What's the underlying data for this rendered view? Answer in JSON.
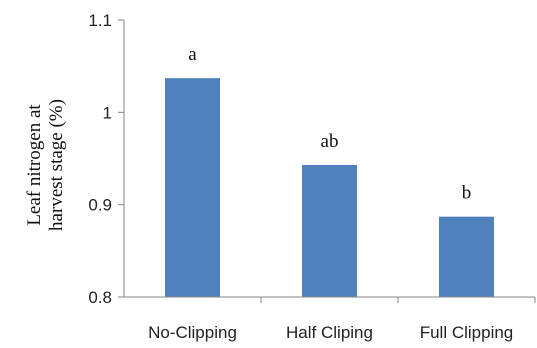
{
  "chart_data": {
    "type": "bar",
    "categories": [
      "No-Clipping",
      "Half Cliping",
      "Full Clipping"
    ],
    "values": [
      1.037,
      0.943,
      0.887
    ],
    "data_labels": [
      "a",
      "ab",
      "b"
    ],
    "title": "",
    "xlabel": "",
    "ylabel_lines": [
      "Leaf nitrogen at",
      "harvest stage (%)"
    ],
    "ylim": [
      0.8,
      1.1
    ],
    "yticks": [
      0.8,
      0.9,
      1.0,
      1.1
    ],
    "ytick_labels": [
      "0.8",
      "0.9",
      "1",
      "1.1"
    ],
    "grid": false,
    "legend": "none",
    "bar_color": "#4F81BD",
    "axis_color": "#868686"
  }
}
